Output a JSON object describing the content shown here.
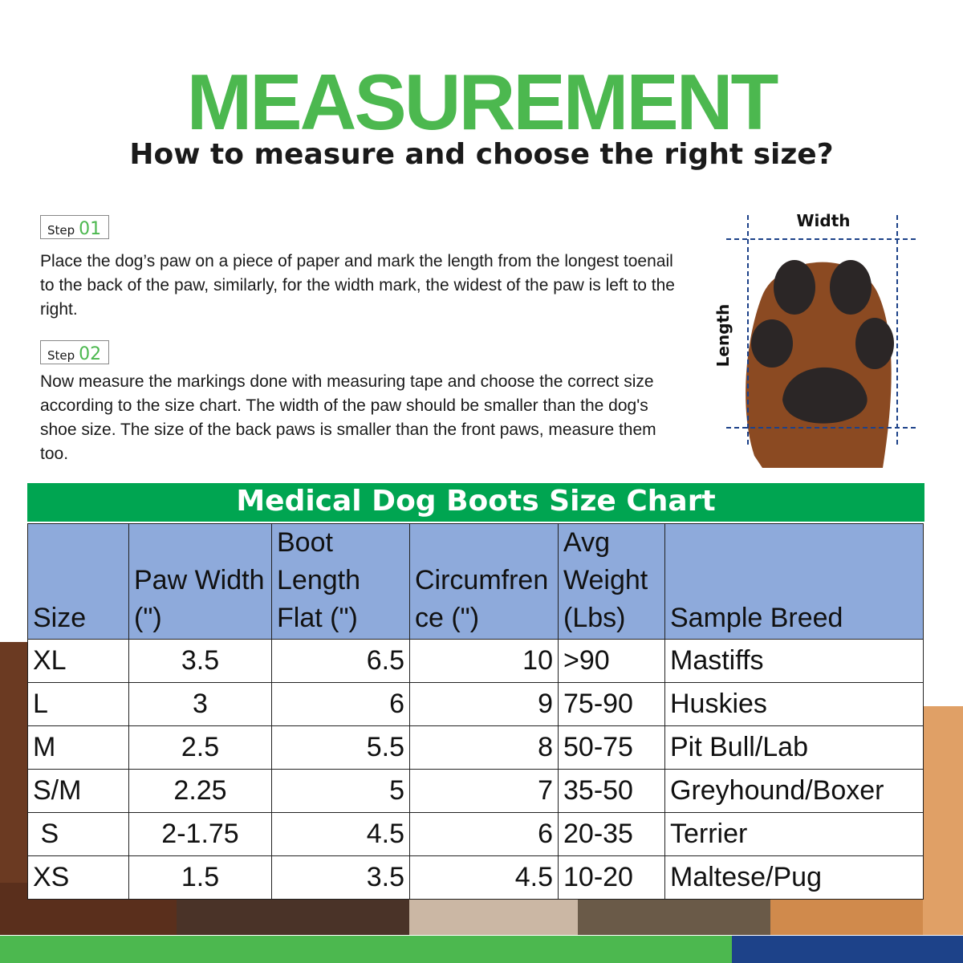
{
  "header": {
    "title": "MEASUREMENT",
    "subtitle": "How to measure and choose the right size?"
  },
  "steps": [
    {
      "label": "Step",
      "number": "01",
      "text": "Place the dog’s paw on a piece of paper and mark the length from the longest toenail to the back of the paw, similarly, for the width mark, the widest of the paw is left to the right."
    },
    {
      "label": "Step",
      "number": "02",
      "text": "Now measure the markings done with measuring tape and choose the correct size according to the size chart. The width of the paw should be smaller than the dog's shoe size. The size of the back paws is smaller than the front paws, measure them too."
    }
  ],
  "diagram": {
    "width_label": "Width",
    "length_label": "Length"
  },
  "size_chart": {
    "title": "Medical Dog Boots Size Chart",
    "columns": [
      "Size",
      "Paw Width (\")",
      "Boot Length Flat (\")",
      "Circumfrence (\")",
      "Avg Weight (Lbs)",
      "Sample Breed"
    ],
    "rows": [
      [
        "XL",
        "3.5",
        "6.5",
        "10",
        ">90",
        "Mastiffs"
      ],
      [
        "L",
        "3",
        "6",
        "9",
        "75-90",
        "Huskies"
      ],
      [
        "M",
        "2.5",
        "5.5",
        "8",
        "50-75",
        "Pit Bull/Lab"
      ],
      [
        "S/M",
        "2.25",
        "5",
        "7",
        "35-50",
        "Greyhound/Boxer"
      ],
      [
        " S",
        "2-1.75",
        "4.5",
        "6",
        "20-35",
        "Terrier"
      ],
      [
        "XS",
        "1.5",
        "3.5",
        "4.5",
        "10-20",
        "Maltese/Pug"
      ]
    ]
  },
  "colors": {
    "green": "#4cb84f",
    "chart_bar": "#00a551",
    "header_fill": "#8eaadb",
    "footer_blue": "#1d4289"
  }
}
